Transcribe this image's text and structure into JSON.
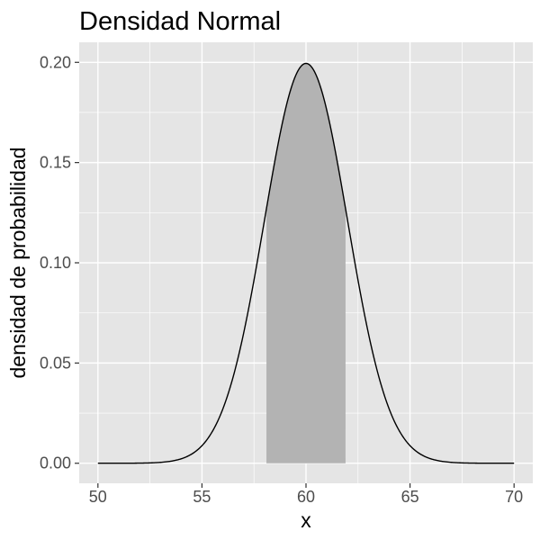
{
  "chart_data": {
    "type": "area",
    "title": "Densidad Normal",
    "xlabel": "x",
    "ylabel": "densidad de probabilidad",
    "xlim": [
      50,
      70
    ],
    "ylim": [
      0,
      0.2
    ],
    "x_ticks": [
      50,
      55,
      60,
      65,
      70
    ],
    "x_tick_labels": [
      "50",
      "55",
      "60",
      "65",
      "70"
    ],
    "y_ticks": [
      0,
      0.05,
      0.1,
      0.15,
      0.2
    ],
    "y_tick_labels": [
      "0.00",
      "0.05",
      "0.10",
      "0.15",
      "0.20"
    ],
    "grid": true,
    "distribution": {
      "name": "normal",
      "mean": 60,
      "sd": 2
    },
    "series": [
      {
        "type": "line",
        "x": [
          50,
          51,
          52,
          53,
          54,
          55,
          56,
          57,
          58,
          59,
          60,
          61,
          62,
          63,
          64,
          65,
          66,
          67,
          68,
          69,
          70
        ],
        "values": [
          7e-07,
          8e-06,
          6.69e-05,
          0.000436,
          0.00222,
          0.00876,
          0.027,
          0.0648,
          0.121,
          0.176,
          0.199,
          0.176,
          0.121,
          0.0648,
          0.027,
          0.00876,
          0.00222,
          0.000436,
          6.69e-05,
          8e-06,
          7e-07
        ],
        "color": "#000000"
      }
    ],
    "shaded_region": {
      "from": 58.1,
      "to": 61.9,
      "color": "#b3b3b3"
    },
    "colors": {
      "panel_background": "#e5e5e5",
      "grid": "#ffffff",
      "text": "#4d4d4d"
    }
  }
}
